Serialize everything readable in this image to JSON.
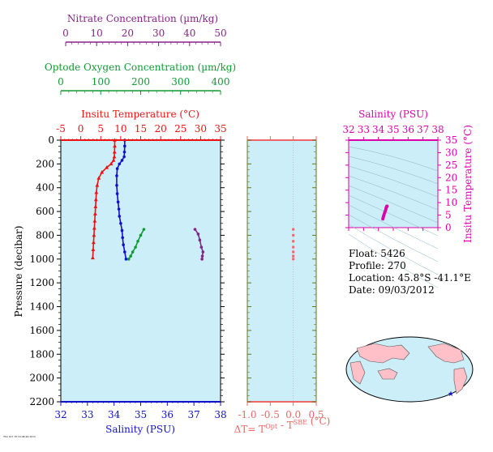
{
  "colors": {
    "temperature": "#ee1111",
    "salinity": "#1111cc",
    "oxygen": "#119933",
    "nitrate": "#882288",
    "delta": "#ee6666",
    "ts_axis": "#dd00aa",
    "panel_bg": "#cceef8",
    "delta_axis": "#667722"
  },
  "chart_data": [
    {
      "type": "line",
      "name": "profile",
      "ylabel": "Pressure (decibar)",
      "ylim": [
        2200,
        0
      ],
      "yticks": [
        0,
        200,
        400,
        600,
        800,
        1000,
        1200,
        1400,
        1600,
        1800,
        2000,
        2200
      ],
      "axes": {
        "salinity": {
          "label": "Salinity (PSU)",
          "lim": [
            32,
            38
          ],
          "ticks": [
            32,
            33,
            34,
            35,
            36,
            37,
            38
          ]
        },
        "temperature": {
          "label": "Insitu Temperature (°C)",
          "lim": [
            -5,
            35
          ],
          "ticks": [
            -5,
            0,
            5,
            10,
            15,
            20,
            25,
            30,
            35
          ]
        },
        "oxygen": {
          "label": "Optode Oxygen Concentration (µm/kg)",
          "lim": [
            0,
            400
          ],
          "ticks": [
            0,
            100,
            200,
            300,
            400
          ]
        },
        "nitrate": {
          "label": "Nitrate Concentration (µm/kg)",
          "lim": [
            0,
            50
          ],
          "ticks": [
            0,
            10,
            20,
            30,
            40,
            50
          ]
        }
      },
      "series": [
        {
          "key": "temperature",
          "x": [
            8.5,
            8.5,
            8.45,
            8.4,
            8.2,
            7.6,
            6.5,
            5.3,
            4.5,
            4.1,
            3.9,
            3.8,
            3.7,
            3.6,
            3.5,
            3.4,
            3.3,
            3.2,
            3.1,
            3.0
          ],
          "y": [
            0,
            50,
            100,
            140,
            170,
            200,
            230,
            270,
            320,
            380,
            440,
            500,
            560,
            620,
            680,
            740,
            800,
            860,
            920,
            990
          ]
        },
        {
          "key": "salinity",
          "x": [
            34.4,
            34.4,
            34.39,
            34.38,
            34.3,
            34.2,
            34.12,
            34.1,
            34.1,
            34.12,
            34.15,
            34.18,
            34.2,
            34.25,
            34.3,
            34.32,
            34.35,
            34.4,
            34.45
          ],
          "y": [
            0,
            50,
            100,
            140,
            170,
            200,
            240,
            300,
            380,
            450,
            520,
            580,
            640,
            700,
            760,
            820,
            880,
            940,
            1000
          ]
        },
        {
          "key": "oxygen",
          "x": [
            208,
            200,
            193,
            187,
            180,
            175,
            170
          ],
          "y": [
            750,
            800,
            850,
            900,
            940,
            975,
            1000
          ]
        },
        {
          "key": "nitrate",
          "x": [
            42,
            43,
            43.5,
            44,
            44.5,
            44.3,
            44.2
          ],
          "y": [
            750,
            790,
            840,
            900,
            940,
            975,
            1000
          ]
        }
      ]
    },
    {
      "type": "scatter",
      "name": "delta_t",
      "xlabel": "ΔT= T^Opt - T^SBE (°C)",
      "xlim": [
        -1.0,
        0.5
      ],
      "xticks": [
        "-1.0",
        "-0.5",
        "0.0",
        "0.5"
      ],
      "ylim": [
        2200,
        0
      ],
      "points": {
        "x": [
          0,
          0,
          0,
          0,
          0,
          0,
          0
        ],
        "y": [
          750,
          800,
          850,
          900,
          940,
          975,
          1000
        ]
      }
    },
    {
      "type": "scatter",
      "name": "ts_diagram",
      "xlabel": "Salinity (PSU)",
      "ylabel": "Insitu Temperature (°C)",
      "xlim": [
        32,
        38
      ],
      "ylim": [
        0,
        35
      ],
      "xticks": [
        32,
        33,
        34,
        35,
        36,
        37,
        38
      ],
      "yticks": [
        0,
        5,
        10,
        15,
        20,
        25,
        30,
        35
      ],
      "points": {
        "x": [
          34.3,
          34.32,
          34.35,
          34.38,
          34.42,
          34.46,
          34.5,
          34.52,
          34.55,
          34.57,
          34.58
        ],
        "y": [
          3.5,
          4.0,
          4.6,
          5.2,
          5.9,
          6.6,
          7.3,
          7.9,
          8.3,
          8.5,
          8.6
        ]
      }
    }
  ],
  "info": {
    "float": "Float:  5426",
    "profile": "Profile:  270",
    "location": "Location:  45.8°S  -41.1°E",
    "date": "Date:  09/03/2012"
  },
  "footer_stamp": "Thu Oct 18 14:04:44 2012",
  "map": {
    "marker_symbol": "★"
  }
}
